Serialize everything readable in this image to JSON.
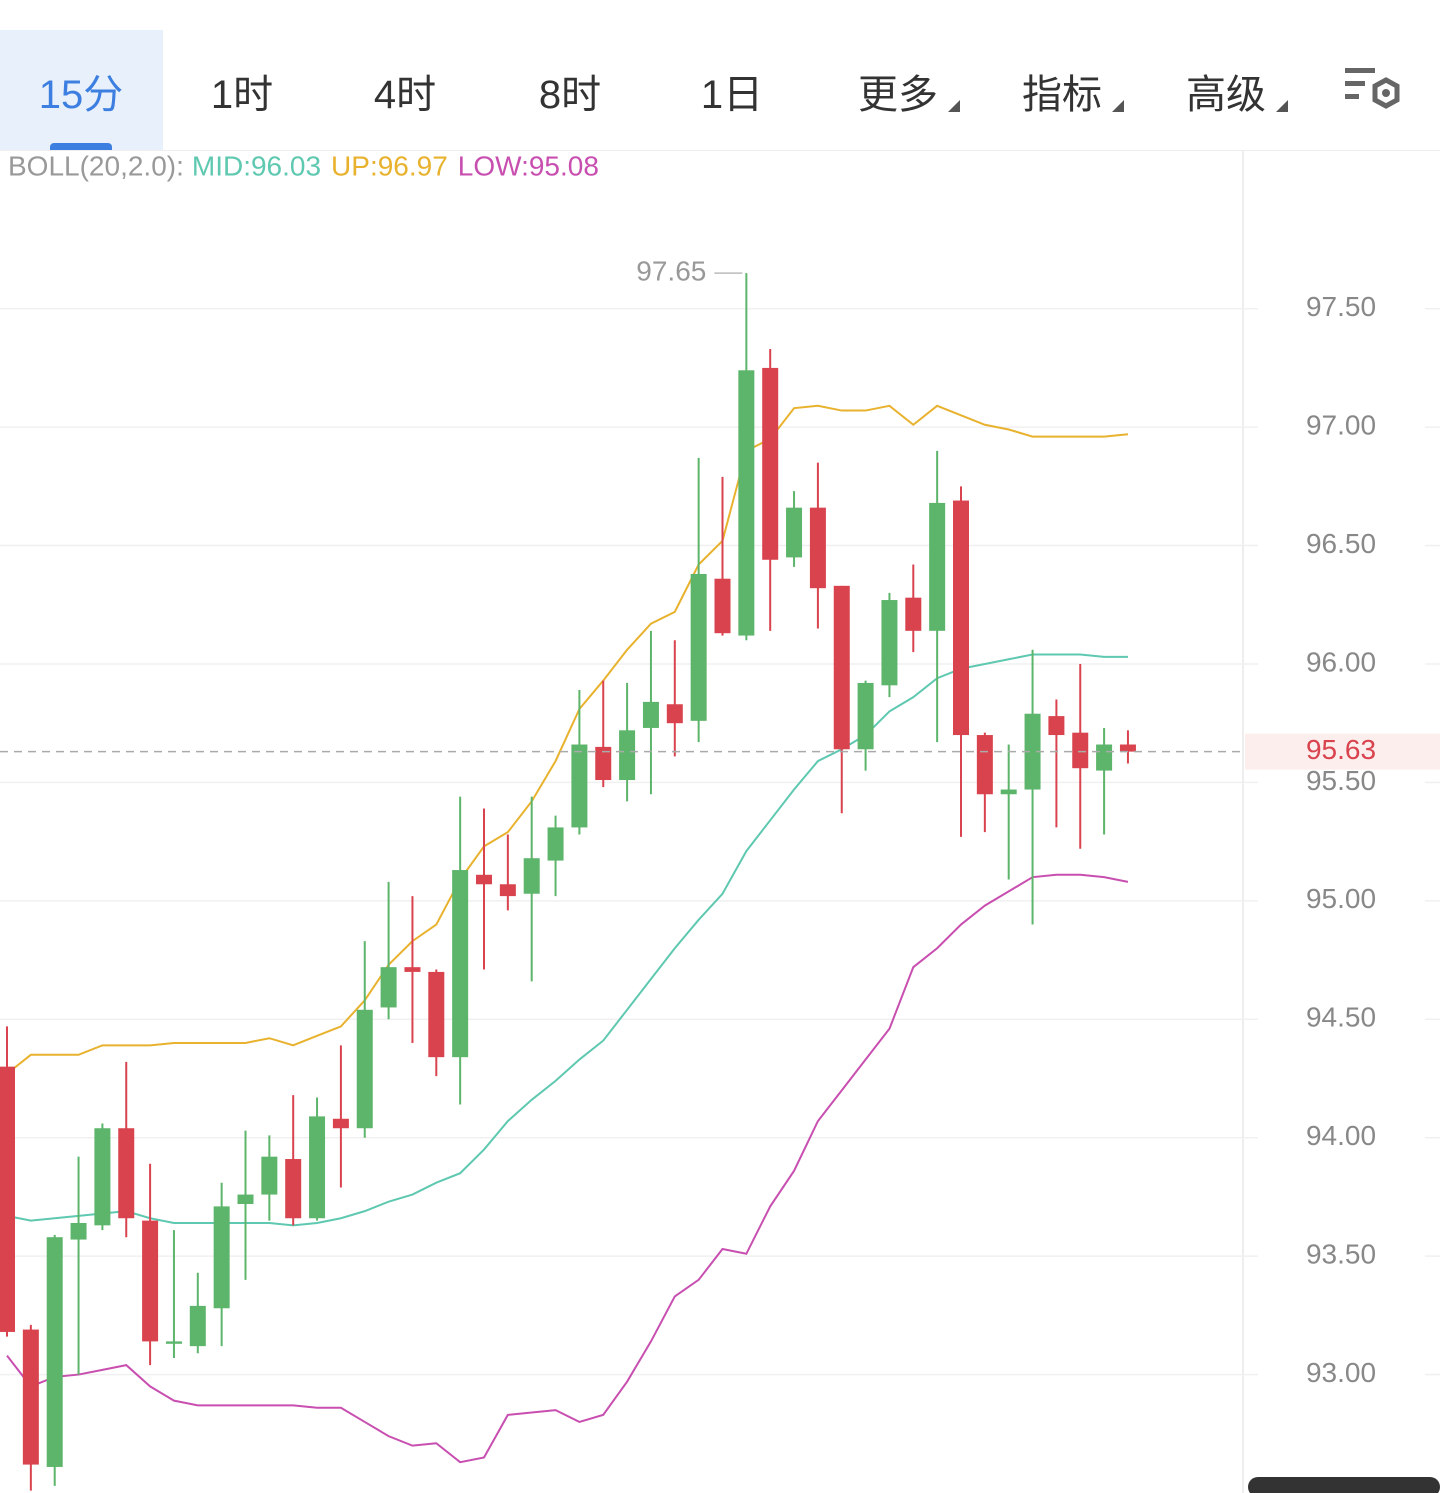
{
  "tabs": [
    "15分",
    "1时",
    "4时",
    "8时",
    "1日",
    "更多",
    "指标",
    "高级"
  ],
  "chart_data": {
    "type": "candlestick",
    "indicator": "BOLL(20,2.0):",
    "up_color": "#5cb56a",
    "down_color": "#d9434e",
    "candles": {
      "open": [
        94.3,
        93.19,
        92.61,
        93.57,
        93.63,
        94.04,
        93.65,
        93.13,
        93.12,
        93.28,
        93.72,
        93.76,
        93.91,
        93.66,
        94.08,
        94.04,
        94.55,
        94.72,
        94.7,
        94.34,
        95.11,
        95.07,
        95.03,
        95.17,
        95.31,
        95.65,
        95.51,
        95.73,
        95.83,
        95.76,
        96.36,
        96.12,
        97.25,
        96.45,
        96.66,
        96.33,
        95.64,
        95.91,
        96.28,
        96.14,
        96.69,
        95.7,
        95.45,
        95.47,
        95.78,
        95.71,
        95.55,
        95.66
      ],
      "high": [
        94.47,
        93.21,
        93.59,
        93.92,
        94.06,
        94.32,
        93.89,
        93.61,
        93.43,
        93.81,
        94.03,
        94.01,
        94.18,
        94.17,
        94.39,
        94.83,
        95.08,
        95.02,
        94.71,
        95.44,
        95.39,
        95.28,
        95.44,
        95.36,
        95.89,
        95.93,
        95.92,
        96.14,
        96.1,
        96.87,
        96.79,
        97.65,
        97.33,
        96.73,
        96.85,
        96.33,
        95.93,
        96.3,
        96.42,
        96.9,
        96.75,
        95.71,
        95.66,
        96.06,
        95.85,
        96.0,
        95.73,
        95.72
      ],
      "low": [
        93.16,
        92.51,
        92.53,
        93.0,
        93.61,
        93.58,
        93.04,
        93.07,
        93.09,
        93.12,
        93.4,
        93.65,
        93.63,
        93.65,
        93.79,
        94.0,
        94.5,
        94.4,
        94.26,
        94.14,
        94.71,
        94.96,
        94.66,
        95.02,
        95.28,
        95.48,
        95.42,
        95.45,
        95.61,
        95.67,
        96.12,
        96.1,
        96.14,
        96.41,
        96.15,
        95.37,
        95.55,
        95.86,
        96.05,
        95.67,
        95.27,
        95.29,
        95.09,
        94.9,
        95.31,
        95.22,
        95.28,
        95.58
      ],
      "close": [
        93.18,
        92.62,
        93.58,
        93.64,
        94.04,
        93.66,
        93.14,
        93.14,
        93.29,
        93.71,
        93.76,
        93.92,
        93.66,
        94.09,
        94.04,
        94.54,
        94.72,
        94.7,
        94.34,
        95.13,
        95.07,
        95.02,
        95.18,
        95.31,
        95.66,
        95.51,
        95.72,
        95.84,
        95.75,
        96.38,
        96.13,
        97.24,
        96.44,
        96.66,
        96.32,
        95.64,
        95.92,
        96.27,
        96.14,
        96.68,
        95.7,
        95.45,
        95.47,
        95.79,
        95.7,
        95.56,
        95.66,
        95.63
      ]
    },
    "series": [
      {
        "name": "MID:96.03",
        "color": "#5ec8b0",
        "values": [
          93.67,
          93.65,
          93.66,
          93.67,
          93.68,
          93.69,
          93.66,
          93.64,
          93.64,
          93.64,
          93.64,
          93.64,
          93.63,
          93.64,
          93.66,
          93.69,
          93.73,
          93.76,
          93.81,
          93.85,
          93.95,
          94.07,
          94.16,
          94.24,
          94.33,
          94.41,
          94.54,
          94.67,
          94.8,
          94.92,
          95.03,
          95.21,
          95.34,
          95.47,
          95.59,
          95.64,
          95.7,
          95.8,
          95.86,
          95.94,
          95.98,
          96.0,
          96.02,
          96.04,
          96.04,
          96.04,
          96.03,
          96.03
        ]
      },
      {
        "name": "UP:96.97",
        "color": "#e8b22e",
        "values": [
          94.27,
          94.35,
          94.35,
          94.35,
          94.39,
          94.39,
          94.39,
          94.4,
          94.4,
          94.4,
          94.4,
          94.42,
          94.39,
          94.43,
          94.47,
          94.58,
          94.73,
          94.83,
          94.9,
          95.09,
          95.23,
          95.29,
          95.42,
          95.59,
          95.81,
          95.93,
          96.06,
          96.17,
          96.22,
          96.42,
          96.52,
          96.9,
          96.95,
          97.08,
          97.09,
          97.07,
          97.07,
          97.09,
          97.01,
          97.09,
          97.05,
          97.01,
          96.99,
          96.96,
          96.96,
          96.96,
          96.96,
          96.97
        ]
      },
      {
        "name": "LOW:95.08",
        "color": "#c84fb0",
        "values": [
          93.08,
          92.95,
          92.99,
          93.0,
          93.02,
          93.04,
          92.95,
          92.89,
          92.87,
          92.87,
          92.87,
          92.87,
          92.87,
          92.86,
          92.86,
          92.8,
          92.74,
          92.7,
          92.71,
          92.63,
          92.65,
          92.83,
          92.84,
          92.85,
          92.8,
          92.83,
          92.97,
          93.14,
          93.33,
          93.4,
          93.53,
          93.51,
          93.71,
          93.86,
          94.07,
          94.2,
          94.33,
          94.46,
          94.72,
          94.8,
          94.9,
          94.98,
          95.04,
          95.1,
          95.11,
          95.11,
          95.1,
          95.08
        ]
      }
    ],
    "ylim": [
      92.5,
      98.17
    ],
    "yticks": [
      {
        "value": 93,
        "label": "93.00"
      },
      {
        "value": 93.5,
        "label": "93.50"
      },
      {
        "value": 94,
        "label": "94.00"
      },
      {
        "value": 94.5,
        "label": "94.50"
      },
      {
        "value": 95,
        "label": "95.00"
      },
      {
        "value": 95.5,
        "label": "95.50"
      },
      {
        "value": 96,
        "label": "96.00"
      },
      {
        "value": 96.5,
        "label": "96.50"
      },
      {
        "value": 97,
        "label": "97.00"
      },
      {
        "value": 97.5,
        "label": "97.50"
      }
    ],
    "grid": true
  }
}
